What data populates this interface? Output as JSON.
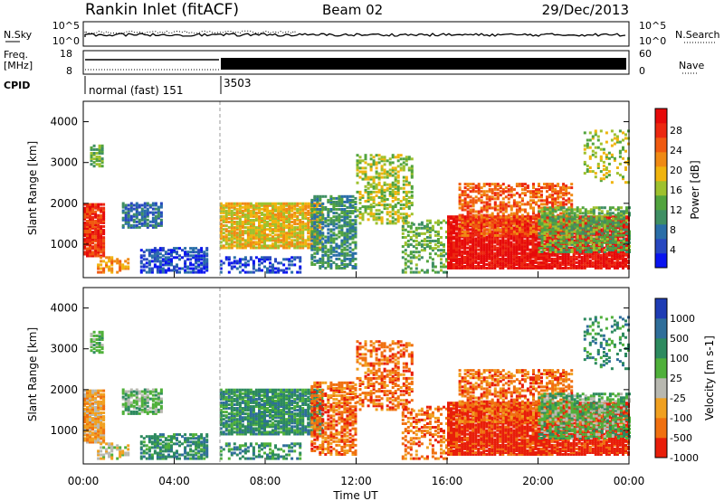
{
  "header": {
    "station": "Rankin Inlet (fitACF)",
    "beam": "Beam 02",
    "date": "29/Dec/2013"
  },
  "noise_panel": {
    "left_label": "N.Sky",
    "right_label": "N.Search",
    "left_ticks": [
      "10^5",
      "10^0"
    ],
    "right_ticks": [
      "10^5",
      "10^0"
    ]
  },
  "freq_panel": {
    "left_label_line1": "Freq.",
    "left_label_line2": "[MHz]",
    "right_label": "Nave",
    "left_ticks": [
      "18",
      "8"
    ],
    "right_ticks": [
      "60",
      "0"
    ]
  },
  "cpid": {
    "label": "CPID",
    "mode1_text": "normal (fast) 151",
    "mode2_text": "3503"
  },
  "chart_data": [
    {
      "type": "heatmap",
      "title": "",
      "ylabel": "Slant Range [km]",
      "xlabel": "",
      "ylim": [
        180,
        4500
      ],
      "y_ticks": [
        "1000",
        "2000",
        "3000",
        "4000"
      ],
      "colorbar_label": "Power [dB]",
      "colorbar_ticks": [
        "4",
        "8",
        "12",
        "16",
        "20",
        "24",
        "28"
      ],
      "colorbar_colors": [
        "#0a14f0",
        "#2848c0",
        "#2a6ea8",
        "#3f8f63",
        "#52a43e",
        "#9ec12e",
        "#f0b40e",
        "#f08a14",
        "#f05a10",
        "#ec2810",
        "#e60a0a"
      ]
    },
    {
      "type": "heatmap",
      "title": "",
      "ylabel": "Slant Range [km]",
      "xlabel": "Time UT",
      "ylim": [
        180,
        4500
      ],
      "y_ticks": [
        "1000",
        "2000",
        "3000",
        "4000"
      ],
      "x_ticks": [
        "00:00",
        "04:00",
        "08:00",
        "12:00",
        "16:00",
        "20:00",
        "00:00"
      ],
      "colorbar_label": "Velocity [m s-1]",
      "colorbar_ticks": [
        "1000",
        "500",
        "100",
        "25",
        "-25",
        "-100",
        "-500",
        "-1000"
      ],
      "colorbar_colors": [
        "#1e3cb4",
        "#2f6e9a",
        "#2d8a5f",
        "#4fb03a",
        "#b8b8b0",
        "#f0a020",
        "#f07010",
        "#e81e0a"
      ]
    }
  ]
}
